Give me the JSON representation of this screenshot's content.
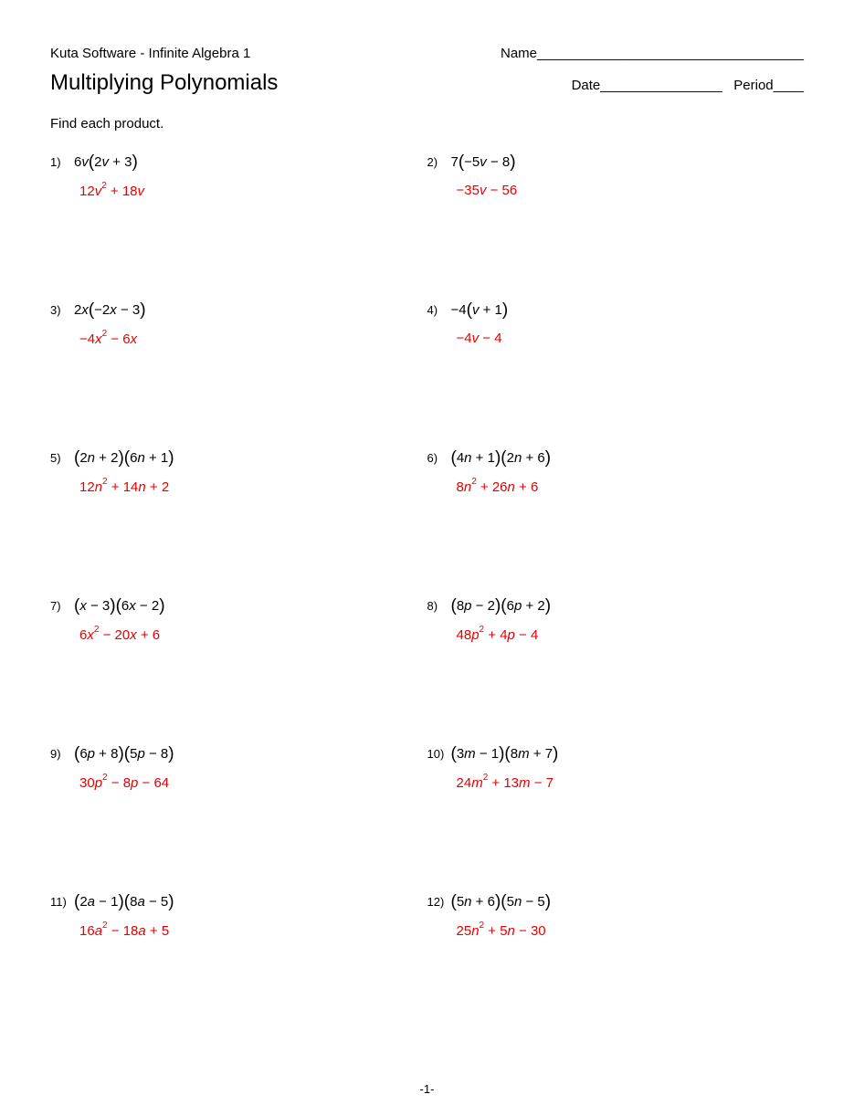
{
  "header": {
    "software": "Kuta Software - Infinite Algebra 1",
    "name_label": "Name___________________________________",
    "title": "Multiplying Polynomials",
    "date_label": "Date________________",
    "period_label": "Period____"
  },
  "instruction": "Find each product.",
  "problems": [
    {
      "num": "1)",
      "expr": "6<i>v</i><span class=\"paren\">(</span>2<i>v</i> + 3<span class=\"paren\">)</span>",
      "answer": "12<i>v</i><sup>2</sup> + 18<i>v</i>"
    },
    {
      "num": "2)",
      "expr": "7<span class=\"paren\">(</span>&minus;5<i>v</i> &minus; 8<span class=\"paren\">)</span>",
      "answer": "&minus;35<i>v</i> &minus; 56"
    },
    {
      "num": "3)",
      "expr": "2<i>x</i><span class=\"paren\">(</span>&minus;2<i>x</i> &minus; 3<span class=\"paren\">)</span>",
      "answer": "&minus;4<i>x</i><sup>2</sup> &minus; 6<i>x</i>"
    },
    {
      "num": "4)",
      "expr": "&minus;4<span class=\"paren\">(</span><i>v</i> + 1<span class=\"paren\">)</span>",
      "answer": "&minus;4<i>v</i> &minus; 4"
    },
    {
      "num": "5)",
      "expr": "<span class=\"paren\">(</span>2<i>n</i> + 2<span class=\"paren\">)(</span>6<i>n</i> + 1<span class=\"paren\">)</span>",
      "answer": "12<i>n</i><sup>2</sup> + 14<i>n</i> + 2"
    },
    {
      "num": "6)",
      "expr": "<span class=\"paren\">(</span>4<i>n</i> + 1<span class=\"paren\">)(</span>2<i>n</i> + 6<span class=\"paren\">)</span>",
      "answer": "8<i>n</i><sup>2</sup> + 26<i>n</i> + 6"
    },
    {
      "num": "7)",
      "expr": "<span class=\"paren\">(</span><i>x</i> &minus; 3<span class=\"paren\">)(</span>6<i>x</i> &minus; 2<span class=\"paren\">)</span>",
      "answer": "6<i>x</i><sup>2</sup> &minus; 20<i>x</i> + 6"
    },
    {
      "num": "8)",
      "expr": "<span class=\"paren\">(</span>8<i>p</i> &minus; 2<span class=\"paren\">)(</span>6<i>p</i> + 2<span class=\"paren\">)</span>",
      "answer": "48<i>p</i><sup>2</sup> + 4<i>p</i> &minus; 4"
    },
    {
      "num": "9)",
      "expr": "<span class=\"paren\">(</span>6<i>p</i> + 8<span class=\"paren\">)(</span>5<i>p</i> &minus; 8<span class=\"paren\">)</span>",
      "answer": "30<i>p</i><sup>2</sup> &minus; 8<i>p</i> &minus; 64"
    },
    {
      "num": "10)",
      "expr": "<span class=\"paren\">(</span>3<i>m</i> &minus; 1<span class=\"paren\">)(</span>8<i>m</i> + 7<span class=\"paren\">)</span>",
      "answer": "24<i>m</i><sup>2</sup> + 13<i>m</i> &minus; 7"
    },
    {
      "num": "11)",
      "expr": "<span class=\"paren\">(</span>2<i>a</i> &minus; 1<span class=\"paren\">)(</span>8<i>a</i> &minus; 5<span class=\"paren\">)</span>",
      "answer": "16<i>a</i><sup>2</sup> &minus; 18<i>a</i> + 5"
    },
    {
      "num": "12)",
      "expr": "<span class=\"paren\">(</span>5<i>n</i> + 6<span class=\"paren\">)(</span>5<i>n</i> &minus; 5<span class=\"paren\">)</span>",
      "answer": "25<i>n</i><sup>2</sup> + 5<i>n</i> &minus; 30"
    }
  ],
  "page_number": "-1-",
  "colors": {
    "text": "#000000",
    "answer": "#e60000",
    "background": "#ffffff"
  },
  "typography": {
    "body_fontsize": 15,
    "title_fontsize": 24,
    "num_fontsize": 13,
    "sup_fontsize": 10,
    "paren_fontsize": 19,
    "font_family": "Verdana"
  }
}
